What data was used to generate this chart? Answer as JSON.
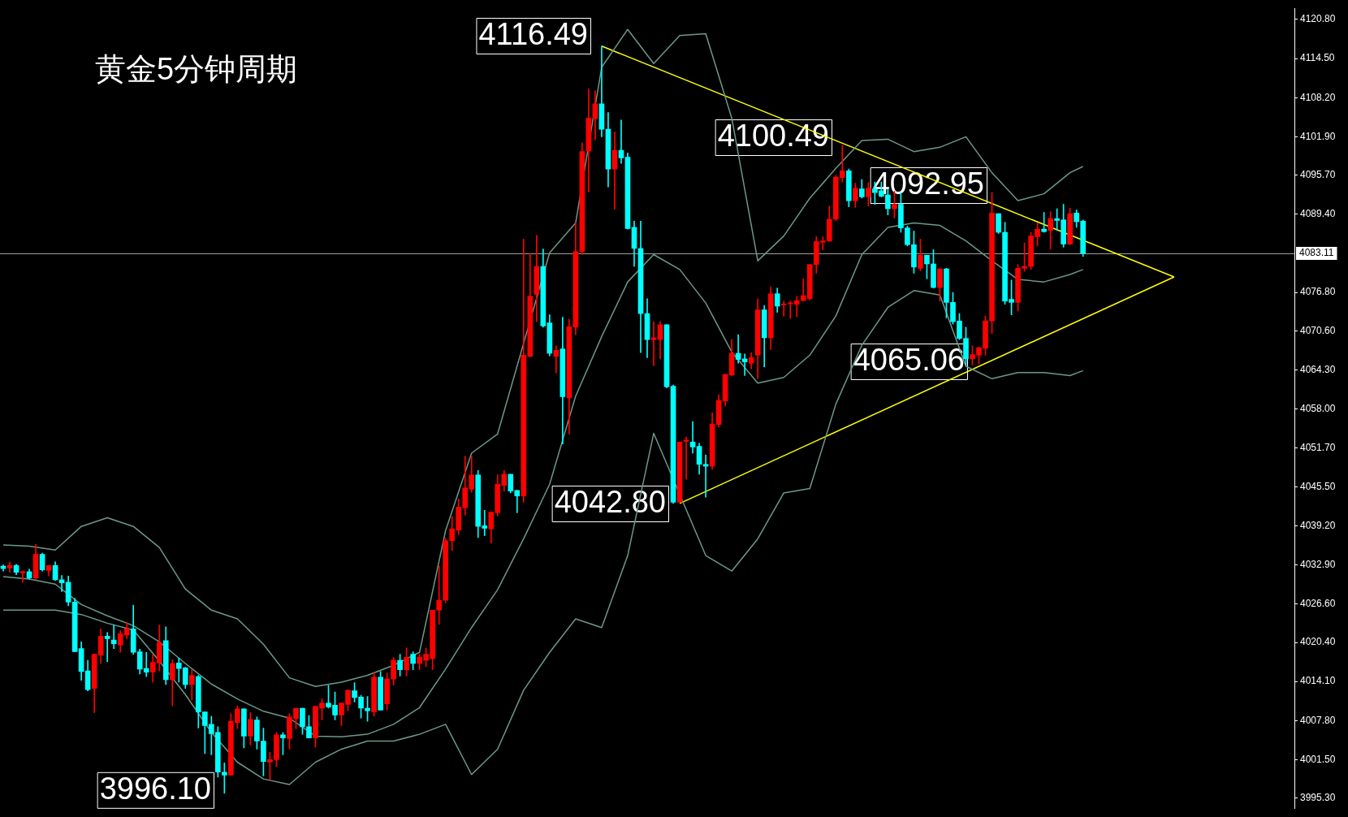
{
  "chart_data": {
    "type": "candlestick",
    "title": "黄金5分钟周期",
    "categories": [
      null,
      null,
      null,
      null,
      null,
      null,
      null,
      null,
      null,
      null,
      null,
      null,
      null,
      null,
      null,
      null,
      null,
      null,
      null,
      null,
      null,
      null,
      null,
      null,
      null,
      null,
      null,
      null,
      null,
      null,
      null,
      null,
      null,
      null,
      null,
      null,
      null,
      null,
      null,
      null,
      null,
      null,
      null,
      null,
      null,
      null,
      null,
      null,
      null,
      null,
      null,
      null,
      null,
      null,
      null,
      null,
      null,
      null,
      null,
      null,
      null,
      null,
      null,
      null,
      null,
      null,
      null,
      null,
      null,
      null,
      null,
      null,
      null,
      null,
      null,
      null,
      null,
      null,
      null,
      null,
      null,
      null,
      null,
      null,
      null,
      null,
      null,
      null,
      null,
      null,
      null,
      null,
      null,
      null,
      null,
      null,
      null,
      null,
      null,
      null,
      null,
      null,
      null,
      null,
      null,
      null,
      null,
      null,
      null,
      null,
      null,
      null,
      null,
      null,
      null,
      null,
      null,
      null,
      null,
      null,
      null,
      null,
      null,
      null,
      null,
      null,
      null,
      null,
      null,
      null,
      null,
      null,
      null,
      null,
      null,
      null,
      null,
      null,
      null,
      null,
      null,
      null,
      null,
      null,
      null,
      null,
      null,
      null,
      null,
      null,
      null,
      null,
      null,
      null,
      null,
      null,
      null,
      null,
      null,
      null,
      null,
      null,
      null,
      null,
      null,
      null,
      null,
      null,
      null,
      null,
      null,
      null,
      null,
      null,
      null,
      null,
      null,
      null,
      null,
      null,
      null,
      null,
      null,
      null,
      null,
      null,
      null,
      null,
      null,
      null,
      null,
      null,
      null,
      null,
      null,
      null,
      null,
      null,
      null
    ],
    "ohlc": [
      [
        4032.7,
        4032.9,
        4031.9,
        4032.3
      ],
      [
        4032.4,
        4033.4,
        4031.7,
        4032.8
      ],
      [
        4032.8,
        4033.0,
        4031.3,
        4031.7
      ],
      [
        4031.6,
        4031.9,
        4030.1,
        4031.8
      ],
      [
        4031.8,
        4032.2,
        4030.6,
        4030.8
      ],
      [
        4030.8,
        4036.2,
        4030.5,
        4034.6
      ],
      [
        4034.6,
        4034.8,
        4031.9,
        4032.1
      ],
      [
        4032.0,
        4032.8,
        4031.1,
        4032.8
      ],
      [
        4032.8,
        4033.4,
        4030.4,
        4030.5
      ],
      [
        4030.5,
        4031.2,
        4028.6,
        4030.0
      ],
      [
        4030.1,
        4031.1,
        4026.3,
        4026.9
      ],
      [
        4026.9,
        4027.5,
        4018.9,
        4018.9
      ],
      [
        4019.4,
        4020.5,
        4014.3,
        4015.7
      ],
      [
        4015.8,
        4017.5,
        4012.6,
        4012.8
      ],
      [
        4013.0,
        4018.5,
        4009.1,
        4018.5
      ],
      [
        4018.4,
        4022.6,
        4017.0,
        4021.4
      ],
      [
        4021.4,
        4022.0,
        4017.3,
        4021.0
      ],
      [
        4020.8,
        4023.2,
        4019.4,
        4020.2
      ],
      [
        4020.0,
        4022.3,
        4018.8,
        4021.8
      ],
      [
        4021.6,
        4023.6,
        4021.0,
        4022.6
      ],
      [
        4022.6,
        4026.4,
        4018.5,
        4018.8
      ],
      [
        4018.9,
        4019.3,
        4015.3,
        4016.1
      ],
      [
        4016.2,
        4018.8,
        4014.9,
        4015.6
      ],
      [
        4015.6,
        4018.5,
        4014.0,
        4017.2
      ],
      [
        4017.1,
        4023.2,
        4015.8,
        4020.4
      ],
      [
        4020.7,
        4022.9,
        4013.6,
        4014.4
      ],
      [
        4014.4,
        4017.6,
        4010.2,
        4017.0
      ],
      [
        4017.1,
        4017.9,
        4014.0,
        4016.2
      ],
      [
        4016.3,
        4016.4,
        4013.0,
        4013.6
      ],
      [
        4013.6,
        4016.0,
        4011.1,
        4015.1
      ],
      [
        4014.9,
        4015.1,
        4006.6,
        4009.2
      ],
      [
        4009.2,
        4009.2,
        4002.5,
        4007.0
      ],
      [
        4007.2,
        4008.5,
        4002.3,
        4005.7
      ],
      [
        4005.9,
        4006.8,
        3998.7,
        3999.5
      ],
      [
        3999.5,
        4001.0,
        3996.1,
        3999.0
      ],
      [
        3999.0,
        4008.9,
        3999.0,
        4007.7
      ],
      [
        4007.5,
        4010.2,
        4006.5,
        4009.7
      ],
      [
        4009.7,
        4009.7,
        4003.4,
        4005.3
      ],
      [
        4005.3,
        4009.1,
        4003.9,
        4008.0
      ],
      [
        4007.9,
        4008.4,
        4003.2,
        4004.5
      ],
      [
        4004.5,
        4006.6,
        3998.9,
        4001.2
      ],
      [
        4001.1,
        4002.7,
        3998.3,
        4001.5
      ],
      [
        4001.5,
        4005.9,
        4000.4,
        4005.5
      ],
      [
        4005.5,
        4005.9,
        4002.3,
        4005.0
      ],
      [
        4004.9,
        4008.9,
        4003.2,
        4008.4
      ],
      [
        4008.1,
        4009.8,
        4006.5,
        4009.8
      ],
      [
        4009.8,
        4009.8,
        4005.6,
        4006.8
      ],
      [
        4006.8,
        4008.6,
        4005.0,
        4005.0
      ],
      [
        4005.0,
        4010.2,
        4003.5,
        4010.1
      ],
      [
        4009.8,
        4011.3,
        4007.9,
        4010.6
      ],
      [
        4010.6,
        4013.5,
        4009.8,
        4010.0
      ],
      [
        4010.3,
        4012.4,
        4007.9,
        4008.7
      ],
      [
        4008.7,
        4010.6,
        4007.0,
        4010.6
      ],
      [
        4010.4,
        4012.7,
        4009.4,
        4012.7
      ],
      [
        4012.6,
        4013.9,
        4010.8,
        4011.5
      ],
      [
        4011.6,
        4011.9,
        4008.2,
        4009.8
      ],
      [
        4009.8,
        4011.7,
        4007.7,
        4009.4
      ],
      [
        4009.2,
        4015.5,
        4008.5,
        4014.8
      ],
      [
        4014.8,
        4015.7,
        4009.5,
        4009.5
      ],
      [
        4010.5,
        4015.5,
        4009.5,
        4014.5
      ],
      [
        4014.5,
        4018.0,
        4013.5,
        4017.5
      ],
      [
        4017.5,
        4018.5,
        4015.0,
        4016.0
      ],
      [
        4016.0,
        4019.5,
        4015.0,
        4018.0
      ],
      [
        4018.5,
        4018.9,
        4016.0,
        4017.0
      ],
      [
        4017.0,
        4018.5,
        4016.0,
        4018.0
      ],
      [
        4017.5,
        4019.5,
        4016.5,
        4018.5
      ],
      [
        4017.8,
        4025.6,
        4016.0,
        4025.6
      ],
      [
        4025.6,
        4032.7,
        4023.3,
        4027.2
      ],
      [
        4027.2,
        4037.2,
        4026.8,
        4036.8
      ],
      [
        4036.8,
        4040.7,
        4035.2,
        4038.7
      ],
      [
        4038.5,
        4043.5,
        4037.8,
        4042.2
      ],
      [
        4042.1,
        4050.4,
        4040.9,
        4045.3
      ],
      [
        4045.1,
        4050.4,
        4044.6,
        4047.4
      ],
      [
        4047.4,
        4048.1,
        4037.3,
        4039.1
      ],
      [
        4039.2,
        4041.7,
        4037.6,
        4038.8
      ],
      [
        4038.7,
        4041.4,
        4036.4,
        4041.4
      ],
      [
        4041.3,
        4047.4,
        4040.8,
        4045.9
      ],
      [
        4045.7,
        4048.1,
        4044.8,
        4047.5
      ],
      [
        4047.5,
        4047.5,
        4044.5,
        4044.8
      ],
      [
        4044.9,
        4044.9,
        4041.3,
        4044.0
      ],
      [
        4044.0,
        4085.4,
        4043.0,
        4066.7
      ],
      [
        4066.5,
        4083.1,
        4066.4,
        4076.2
      ],
      [
        4076.5,
        4086.0,
        4072.1,
        4081.0
      ],
      [
        4081.0,
        4083.8,
        4071.2,
        4071.4
      ],
      [
        4071.9,
        4073.2,
        4066.6,
        4067.0
      ],
      [
        4066.5,
        4068.2,
        4063.8,
        4067.5
      ],
      [
        4067.7,
        4072.8,
        4052.4,
        4060.0
      ],
      [
        4059.8,
        4072.5,
        4054.0,
        4071.3
      ],
      [
        4071.2,
        4088.0,
        4070.0,
        4083.4
      ],
      [
        4083.4,
        4100.9,
        4082.9,
        4099.5
      ],
      [
        4099.6,
        4109.6,
        4093.0,
        4104.9
      ],
      [
        4104.8,
        4109.3,
        4101.4,
        4107.2
      ],
      [
        4107.2,
        4116.49,
        4101.9,
        4103.1
      ],
      [
        4103.1,
        4105.8,
        4093.8,
        4096.7
      ],
      [
        4096.7,
        4102.7,
        4090.2,
        4099.7
      ],
      [
        4099.7,
        4104.6,
        4097.6,
        4098.5
      ],
      [
        4098.6,
        4099.3,
        4087.0,
        4087.1
      ],
      [
        4087.3,
        4088.3,
        4081.0,
        4083.9
      ],
      [
        4083.9,
        4088.3,
        4067.1,
        4073.4
      ],
      [
        4073.4,
        4075.8,
        4066.3,
        4069.2
      ],
      [
        4069.2,
        4072.1,
        4065.0,
        4069.5
      ],
      [
        4069.2,
        4072.1,
        4066.1,
        4071.6
      ],
      [
        4071.6,
        4071.6,
        4061.4,
        4061.6
      ],
      [
        4061.7,
        4061.9,
        4042.8,
        4043.0
      ],
      [
        4043.0,
        4052.7,
        4043.0,
        4052.7
      ],
      [
        4052.8,
        4053.5,
        4046.7,
        4053.0
      ],
      [
        4052.7,
        4056.0,
        4050.9,
        4051.9
      ],
      [
        4052.0,
        4052.5,
        4047.5,
        4049.1
      ],
      [
        4049.1,
        4050.6,
        4043.8,
        4048.8
      ],
      [
        4048.8,
        4057.4,
        4048.3,
        4055.6
      ],
      [
        4055.5,
        4060.3,
        4055.1,
        4059.4
      ],
      [
        4059.3,
        4063.6,
        4058.5,
        4063.6
      ],
      [
        4063.5,
        4069.2,
        4063.4,
        4067.0
      ],
      [
        4067.0,
        4070.0,
        4065.4,
        4066.0
      ],
      [
        4066.1,
        4066.9,
        4063.4,
        4065.6
      ],
      [
        4065.4,
        4067.1,
        4064.5,
        4066.3
      ],
      [
        4066.7,
        4075.8,
        4062.9,
        4074.0
      ],
      [
        4074.0,
        4074.7,
        4064.8,
        4069.5
      ],
      [
        4069.5,
        4077.7,
        4067.6,
        4076.6
      ],
      [
        4076.6,
        4077.5,
        4073.6,
        4074.6
      ],
      [
        4074.8,
        4075.4,
        4073.0,
        4074.9
      ],
      [
        4075.0,
        4075.4,
        4072.6,
        4075.1
      ],
      [
        4074.9,
        4076.2,
        4072.9,
        4075.5
      ],
      [
        4075.5,
        4079.0,
        4075.4,
        4076.3
      ],
      [
        4075.8,
        4081.3,
        4075.6,
        4081.3
      ],
      [
        4081.3,
        4085.8,
        4079.9,
        4085.0
      ],
      [
        4084.9,
        4085.8,
        4083.7,
        4085.1
      ],
      [
        4085.1,
        4090.7,
        4085.0,
        4088.6
      ],
      [
        4088.6,
        4095.7,
        4088.4,
        4095.4
      ],
      [
        4095.3,
        4100.49,
        4094.6,
        4096.4
      ],
      [
        4096.4,
        4096.7,
        4090.6,
        4091.6
      ],
      [
        4091.6,
        4094.4,
        4090.5,
        4093.6
      ],
      [
        4093.5,
        4095.0,
        4092.0,
        4092.2
      ],
      [
        4092.2,
        4094.5,
        4090.7,
        4093.6
      ],
      [
        4093.5,
        4094.6,
        4091.0,
        4092.9
      ],
      [
        4093.2,
        4094.6,
        4092.2,
        4092.3
      ],
      [
        4092.5,
        4093.5,
        4089.3,
        4090.3
      ],
      [
        4090.3,
        4093.1,
        4088.8,
        4091.0
      ],
      [
        4091.0,
        4092.9,
        4086.5,
        4087.2
      ],
      [
        4087.2,
        4087.5,
        4084.3,
        4084.5
      ],
      [
        4084.5,
        4086.7,
        4079.9,
        4080.9
      ],
      [
        4080.7,
        4085.4,
        4080.3,
        4082.8
      ],
      [
        4082.8,
        4082.8,
        4079.0,
        4081.4
      ],
      [
        4081.4,
        4083.7,
        4077.5,
        4077.6
      ],
      [
        4077.6,
        4080.6,
        4075.4,
        4080.6
      ],
      [
        4080.6,
        4080.7,
        4072.7,
        4075.2
      ],
      [
        4075.2,
        4076.8,
        4071.7,
        4072.1
      ],
      [
        4072.2,
        4073.4,
        4069.2,
        4069.4
      ],
      [
        4069.4,
        4071.2,
        4065.06,
        4066.1
      ],
      [
        4066.1,
        4068.2,
        4065.1,
        4066.8
      ],
      [
        4066.7,
        4068.0,
        4065.3,
        4067.9
      ],
      [
        4067.8,
        4073.0,
        4066.7,
        4072.2
      ],
      [
        4072.2,
        4092.95,
        4070.2,
        4089.6
      ],
      [
        4089.5,
        4089.5,
        4086.3,
        4086.5
      ],
      [
        4086.5,
        4088.1,
        4074.9,
        4075.4
      ],
      [
        4075.7,
        4078.8,
        4073.2,
        4075.2
      ],
      [
        4075.2,
        4081.3,
        4073.8,
        4080.7
      ],
      [
        4080.7,
        4084.8,
        4080.2,
        4081.0
      ],
      [
        4081.0,
        4086.5,
        4080.5,
        4085.9
      ],
      [
        4085.8,
        4088.0,
        4084.3,
        4087.0
      ],
      [
        4087.0,
        4089.7,
        4086.5,
        4086.6
      ],
      [
        4086.8,
        4089.8,
        4083.8,
        4088.7
      ],
      [
        4088.7,
        4090.3,
        4086.8,
        4088.4
      ],
      [
        4088.5,
        4091.0,
        4084.1,
        4084.6
      ],
      [
        4084.6,
        4090.4,
        4084.5,
        4089.5
      ],
      [
        4089.6,
        4090.1,
        4087.3,
        4088.2
      ],
      [
        4088.3,
        4088.5,
        4082.6,
        4083.11
      ],
      null,
      null,
      null,
      null,
      null,
      null,
      null,
      null,
      null,
      null,
      null,
      null,
      null,
      null,
      null,
      null,
      null,
      null,
      null,
      null,
      null,
      null,
      null,
      null,
      null,
      null,
      null,
      null,
      null,
      null,
      null,
      null
    ],
    "colors": [
      "#00ffff",
      "#ff0000",
      "#00ffff",
      "#ff0000",
      "#00ffff",
      "#ff0000",
      "#00ffff",
      "#ff0000",
      "#00ffff",
      "#00ffff",
      "#00ffff",
      "#00ffff",
      "#00ffff",
      "#00ffff",
      "#ff0000",
      "#ff0000",
      "#00ffff",
      "#00ffff",
      "#ff0000",
      "#ff0000",
      "#00ffff",
      "#00ffff",
      "#00ffff",
      "#ff0000",
      "#ff0000",
      "#00ffff",
      "#ff0000",
      "#00ffff",
      "#00ffff",
      "#ff0000",
      "#00ffff",
      "#00ffff",
      "#00ffff",
      "#00ffff",
      "#00ffff",
      "#ff0000",
      "#ff0000",
      "#00ffff",
      "#ff0000",
      "#00ffff",
      "#00ffff",
      "#ff0000",
      "#ff0000",
      "#00ffff",
      "#ff0000",
      "#ff0000",
      "#00ffff",
      "#00ffff",
      "#ff0000",
      "#ff0000",
      "#00ffff",
      "#00ffff",
      "#ff0000",
      "#ff0000",
      "#00ffff",
      "#00ffff",
      "#00ffff",
      "#ff0000",
      "#00ffff",
      "#ff0000",
      "#ff0000",
      "#00ffff",
      "#ff0000",
      "#00ffff",
      "#ff0000",
      "#ff0000",
      "#ff0000",
      "#ff0000",
      "#ff0000",
      "#ff0000",
      "#ff0000",
      "#ff0000",
      "#ff0000",
      "#00ffff",
      "#00ffff",
      "#ff0000",
      "#ff0000",
      "#ff0000",
      "#00ffff",
      "#00ffff",
      "#ff0000",
      "#ff0000",
      "#ff0000",
      "#00ffff",
      "#00ffff",
      "#ff0000",
      "#00ffff",
      "#ff0000",
      "#ff0000",
      "#ff0000",
      "#ff0000",
      "#ff0000",
      "#00ffff",
      "#00ffff",
      "#ff0000",
      "#00ffff",
      "#00ffff",
      "#00ffff",
      "#00ffff",
      "#00ffff",
      "#ff0000",
      "#ff0000",
      "#00ffff",
      "#00ffff",
      "#ff0000",
      "#ff0000",
      "#00ffff",
      "#00ffff",
      "#00ffff",
      "#ff0000",
      "#ff0000",
      "#ff0000",
      "#ff0000",
      "#00ffff",
      "#00ffff",
      "#ff0000",
      "#ff0000",
      "#00ffff",
      "#ff0000",
      "#00ffff",
      "#ff0000",
      "#ff0000",
      "#ff0000",
      "#ff0000",
      "#ff0000",
      "#ff0000",
      "#ff0000",
      "#ff0000",
      "#ff0000",
      "#ff0000",
      "#00ffff",
      "#ff0000",
      "#00ffff",
      "#ff0000",
      "#00ffff",
      "#00ffff",
      "#00ffff",
      "#ff0000",
      "#00ffff",
      "#00ffff",
      "#00ffff",
      "#ff0000",
      "#00ffff",
      "#00ffff",
      "#ff0000",
      "#00ffff",
      "#00ffff",
      "#00ffff",
      "#00ffff",
      "#ff0000",
      "#ff0000",
      "#ff0000",
      "#ff0000",
      "#00ffff",
      "#00ffff",
      "#00ffff",
      "#ff0000",
      "#ff0000",
      "#ff0000",
      "#ff0000",
      "#00ffff",
      "#ff0000",
      "#00ffff",
      "#00ffff",
      "#ff0000",
      "#00ffff",
      "#00ffff",
      null,
      null,
      null,
      null,
      null,
      null,
      null,
      null,
      null,
      null,
      null,
      null,
      null,
      null,
      null,
      null,
      null,
      null,
      null,
      null,
      null,
      null,
      null,
      null,
      null,
      null,
      null,
      null,
      null,
      null,
      null,
      null
    ],
    "series": [
      {
        "type": "line",
        "color": "#6a9a8a",
        "values": [
          4036.1,
          null,
          null,
          null,
          4035.9,
          null,
          null,
          null,
          4035.3,
          null,
          null,
          null,
          4039.1,
          null,
          null,
          null,
          4040.5,
          null,
          null,
          null,
          4039.1,
          null,
          null,
          null,
          4035.7,
          null,
          null,
          null,
          4029.0,
          null,
          null,
          null,
          4025.6,
          null,
          null,
          null,
          4024.2,
          null,
          null,
          null,
          4020.1,
          null,
          null,
          null,
          4014.7,
          null,
          null,
          null,
          4013.3,
          null,
          null,
          null,
          4014.0,
          null,
          null,
          null,
          4015.1,
          null,
          null,
          null,
          4016.7,
          null,
          null,
          null,
          4018.8,
          null,
          null,
          null,
          4038.4,
          null,
          null,
          null,
          4050.9,
          null,
          null,
          null,
          4054.0,
          null,
          null,
          null,
          null,
          null,
          null,
          null,
          4083.2,
          null,
          null,
          null,
          4088.0,
          null,
          null,
          null,
          4113.1,
          null,
          null,
          null,
          4119.2,
          null,
          null,
          null,
          4113.7,
          null,
          null,
          null,
          4118.2,
          null,
          null,
          null,
          4118.5,
          null,
          null,
          null,
          4104.9,
          null,
          null,
          null,
          4081.9,
          null,
          null,
          null,
          4085.9,
          null,
          null,
          null,
          4092.0,
          null,
          null,
          null,
          4096.8,
          null,
          null,
          null,
          4101.3,
          null,
          null,
          null,
          4101.5,
          null,
          null,
          null,
          4099.5,
          null,
          null,
          null,
          4100.2,
          null,
          null,
          null,
          4101.9,
          null,
          null,
          null,
          4096.1,
          null,
          null,
          null,
          4091.6,
          null,
          null,
          null,
          4092.7,
          null,
          null,
          null,
          4096.1,
          null,
          4097.1,
          null,
          null,
          null,
          null,
          null,
          null,
          null,
          null,
          null,
          null,
          null,
          null,
          null,
          null,
          null,
          null,
          null,
          null,
          null,
          null,
          null,
          null,
          null,
          null,
          null,
          null,
          null,
          null,
          null,
          null,
          null,
          null
        ]
      },
      {
        "type": "line",
        "color": "#6a9a8a",
        "values": [
          4031.0,
          null,
          null,
          null,
          4030.6,
          null,
          null,
          null,
          4029.8,
          null,
          null,
          null,
          4026.5,
          null,
          null,
          null,
          4024.7,
          null,
          null,
          null,
          4023.1,
          null,
          null,
          null,
          4020.5,
          null,
          null,
          null,
          4017.0,
          null,
          null,
          null,
          4013.7,
          null,
          null,
          null,
          4011.3,
          null,
          null,
          null,
          4009.3,
          null,
          null,
          null,
          4008.2,
          null,
          null,
          null,
          4005.3,
          null,
          null,
          null,
          4005.2,
          null,
          null,
          null,
          4005.6,
          null,
          null,
          null,
          4007.2,
          null,
          null,
          null,
          4009.9,
          null,
          null,
          null,
          4016.1,
          null,
          null,
          null,
          4022.8,
          null,
          null,
          null,
          4028.9,
          null,
          null,
          null,
          4037.1,
          null,
          null,
          null,
          4045.9,
          null,
          null,
          null,
          4060.1,
          null,
          null,
          null,
          4069.7,
          null,
          null,
          null,
          4078.5,
          null,
          null,
          null,
          4082.9,
          null,
          null,
          null,
          4080.5,
          null,
          null,
          null,
          4075.1,
          null,
          null,
          null,
          4067.2,
          null,
          null,
          null,
          4062.2,
          null,
          null,
          null,
          4063.1,
          null,
          null,
          null,
          4066.7,
          null,
          null,
          null,
          4073.0,
          null,
          null,
          null,
          4082.9,
          null,
          null,
          null,
          4087.3,
          null,
          null,
          null,
          4088.0,
          null,
          null,
          null,
          4087.6,
          null,
          null,
          null,
          4085.1,
          null,
          null,
          null,
          4081.9,
          null,
          null,
          null,
          4078.9,
          null,
          null,
          null,
          4078.5,
          null,
          null,
          null,
          4079.7,
          null,
          4080.5,
          null,
          null,
          null,
          null,
          null,
          null,
          null,
          null,
          null,
          null,
          null,
          null,
          null,
          null,
          null,
          null,
          null,
          null,
          null,
          null,
          null,
          null,
          null,
          null,
          null,
          null,
          null,
          null,
          null,
          null,
          null,
          null
        ]
      },
      {
        "type": "line",
        "color": "#6a9a8a",
        "values": [
          4025.6,
          null,
          null,
          null,
          4025.6,
          null,
          null,
          null,
          4025.6,
          null,
          null,
          null,
          4024.9,
          null,
          null,
          null,
          4023.5,
          null,
          null,
          null,
          4022.4,
          null,
          null,
          null,
          4017.4,
          null,
          null,
          null,
          4012.0,
          null,
          null,
          null,
          4005.9,
          null,
          null,
          null,
          4001.1,
          null,
          null,
          null,
          3998.4,
          null,
          null,
          null,
          3997.5,
          null,
          null,
          null,
          4001.1,
          null,
          null,
          null,
          4003.2,
          null,
          null,
          null,
          4004.5,
          null,
          null,
          null,
          4004.5,
          null,
          null,
          null,
          4005.6,
          null,
          null,
          null,
          4007.2,
          null,
          null,
          null,
          3999.1,
          null,
          null,
          null,
          4003.2,
          null,
          null,
          null,
          4012.7,
          null,
          null,
          null,
          4018.8,
          null,
          null,
          null,
          4024.2,
          null,
          null,
          null,
          4022.8,
          null,
          null,
          null,
          4034.4,
          null,
          null,
          null,
          4054.1,
          null,
          null,
          null,
          null,
          null,
          null,
          null,
          4034.4,
          null,
          null,
          null,
          4031.9,
          null,
          null,
          null,
          4037.1,
          null,
          null,
          null,
          4044.5,
          null,
          null,
          null,
          4045.2,
          null,
          null,
          null,
          4058.8,
          null,
          null,
          null,
          4068.3,
          null,
          null,
          null,
          4074.4,
          null,
          null,
          null,
          4077.1,
          null,
          null,
          null,
          4076.4,
          null,
          null,
          null,
          4064.9,
          null,
          null,
          null,
          4062.9,
          null,
          null,
          null,
          4063.9,
          null,
          null,
          null,
          4063.9,
          null,
          null,
          null,
          4063.4,
          null,
          4064.2,
          null,
          null,
          null,
          null,
          null,
          null,
          null,
          null,
          null,
          null,
          null,
          null,
          null,
          null,
          null,
          null,
          null,
          null,
          null,
          null,
          null,
          null,
          null,
          null,
          null,
          null,
          null,
          null,
          null,
          null,
          null,
          null
        ]
      },
      {
        "type": "line",
        "color": "#ffff00",
        "values": [
          null,
          null,
          null,
          null,
          null,
          null,
          null,
          null,
          null,
          null,
          null,
          null,
          null,
          null,
          null,
          null,
          null,
          null,
          null,
          null,
          null,
          null,
          null,
          null,
          null,
          null,
          null,
          null,
          null,
          null,
          null,
          null,
          null,
          null,
          null,
          null,
          null,
          null,
          null,
          null,
          null,
          null,
          null,
          null,
          null,
          null,
          null,
          null,
          null,
          null,
          null,
          null,
          null,
          null,
          null,
          null,
          null,
          null,
          null,
          null,
          null,
          null,
          null,
          null,
          null,
          null,
          null,
          null,
          null,
          null,
          null,
          null,
          null,
          null,
          null,
          null,
          null,
          null,
          null,
          null,
          null,
          null,
          null,
          null,
          null,
          null,
          null,
          null,
          null,
          null,
          null,
          null,
          4116.5,
          null,
          null,
          null,
          null,
          null,
          null,
          null,
          null,
          null,
          null,
          null,
          null,
          null,
          null,
          null,
          null,
          null,
          null,
          null,
          null,
          null,
          null,
          null,
          null,
          null,
          null,
          null,
          null,
          null,
          null,
          null,
          null,
          null,
          null,
          null,
          null,
          null,
          null,
          null,
          null,
          null,
          null,
          null,
          null,
          null,
          null,
          null,
          null,
          null,
          null,
          null,
          null,
          null,
          null,
          null,
          null,
          null,
          null,
          null,
          null,
          null,
          null,
          null,
          null,
          null,
          null,
          null,
          null,
          null,
          null,
          null,
          null,
          null,
          null,
          null,
          null,
          null,
          null,
          null,
          null,
          null,
          null,
          null,
          null,
          null,
          null,
          null,
          4079.3,
          null,
          null,
          null,
          null,
          null,
          null,
          null,
          null,
          null,
          null,
          null,
          null,
          null,
          null,
          null,
          null,
          null,
          null
        ]
      },
      {
        "type": "line",
        "color": "#ffff00",
        "values": [
          null,
          null,
          null,
          null,
          null,
          null,
          null,
          null,
          null,
          null,
          null,
          null,
          null,
          null,
          null,
          null,
          null,
          null,
          null,
          null,
          null,
          null,
          null,
          null,
          null,
          null,
          null,
          null,
          null,
          null,
          null,
          null,
          null,
          null,
          null,
          null,
          null,
          null,
          null,
          null,
          null,
          null,
          null,
          null,
          null,
          null,
          null,
          null,
          null,
          null,
          null,
          null,
          null,
          null,
          null,
          null,
          null,
          null,
          null,
          null,
          null,
          null,
          null,
          null,
          null,
          null,
          null,
          null,
          null,
          null,
          null,
          null,
          null,
          null,
          null,
          null,
          null,
          null,
          null,
          null,
          null,
          null,
          null,
          null,
          null,
          null,
          null,
          null,
          null,
          null,
          null,
          null,
          null,
          null,
          null,
          null,
          null,
          null,
          null,
          null,
          null,
          null,
          null,
          null,
          4042.8,
          null,
          null,
          null,
          null,
          null,
          null,
          null,
          null,
          null,
          null,
          null,
          null,
          null,
          null,
          null,
          null,
          null,
          null,
          null,
          null,
          null,
          null,
          null,
          null,
          null,
          null,
          null,
          null,
          null,
          null,
          null,
          null,
          null,
          null,
          null,
          null,
          null,
          null,
          null,
          null,
          null,
          null,
          null,
          null,
          null,
          null,
          null,
          null,
          null,
          null,
          null,
          null,
          null,
          null,
          null,
          null,
          null,
          null,
          null,
          null,
          null,
          null,
          null,
          null,
          null,
          null,
          null,
          null,
          null,
          null,
          null,
          null,
          null,
          null,
          null,
          4079.3,
          null,
          null,
          null,
          null,
          null,
          null,
          null,
          null,
          null,
          null,
          null,
          null,
          null,
          null,
          null,
          null,
          null,
          null
        ]
      }
    ],
    "ylim": [
      3993.6,
      4122.6
    ],
    "yticks": [
      {
        "value": 4120.8,
        "label": "4120.80"
      },
      {
        "value": 4114.5,
        "label": "4114.50"
      },
      {
        "value": 4108.2,
        "label": "4108.20"
      },
      {
        "value": 4101.9,
        "label": "4101.90"
      },
      {
        "value": 4095.7,
        "label": "4095.70"
      },
      {
        "value": 4089.4,
        "label": "4089.40"
      },
      {
        "value": 4076.8,
        "label": "4076.80"
      },
      {
        "value": 4070.6,
        "label": "4070.60"
      },
      {
        "value": 4064.3,
        "label": "4064.30"
      },
      {
        "value": 4058.0,
        "label": "4058.00"
      },
      {
        "value": 4051.7,
        "label": "4051.70"
      },
      {
        "value": 4045.5,
        "label": "4045.50"
      },
      {
        "value": 4039.2,
        "label": "4039.20"
      },
      {
        "value": 4032.9,
        "label": "4032.90"
      },
      {
        "value": 4026.6,
        "label": "4026.60"
      },
      {
        "value": 4020.4,
        "label": "4020.40"
      },
      {
        "value": 4014.1,
        "label": "4014.10"
      },
      {
        "value": 4007.8,
        "label": "4007.80"
      },
      {
        "value": 4001.5,
        "label": "4001.50"
      },
      {
        "value": 3995.3,
        "label": "3995.30"
      }
    ],
    "ref_lines": [
      {
        "axis": "y",
        "value": 4083.11,
        "label": "4083.11",
        "color": "#a0a0a0"
      }
    ],
    "annotations": [
      "4116.49",
      "4100.49",
      "4092.95",
      "4065.06",
      "4042.80",
      "3996.10"
    ]
  }
}
